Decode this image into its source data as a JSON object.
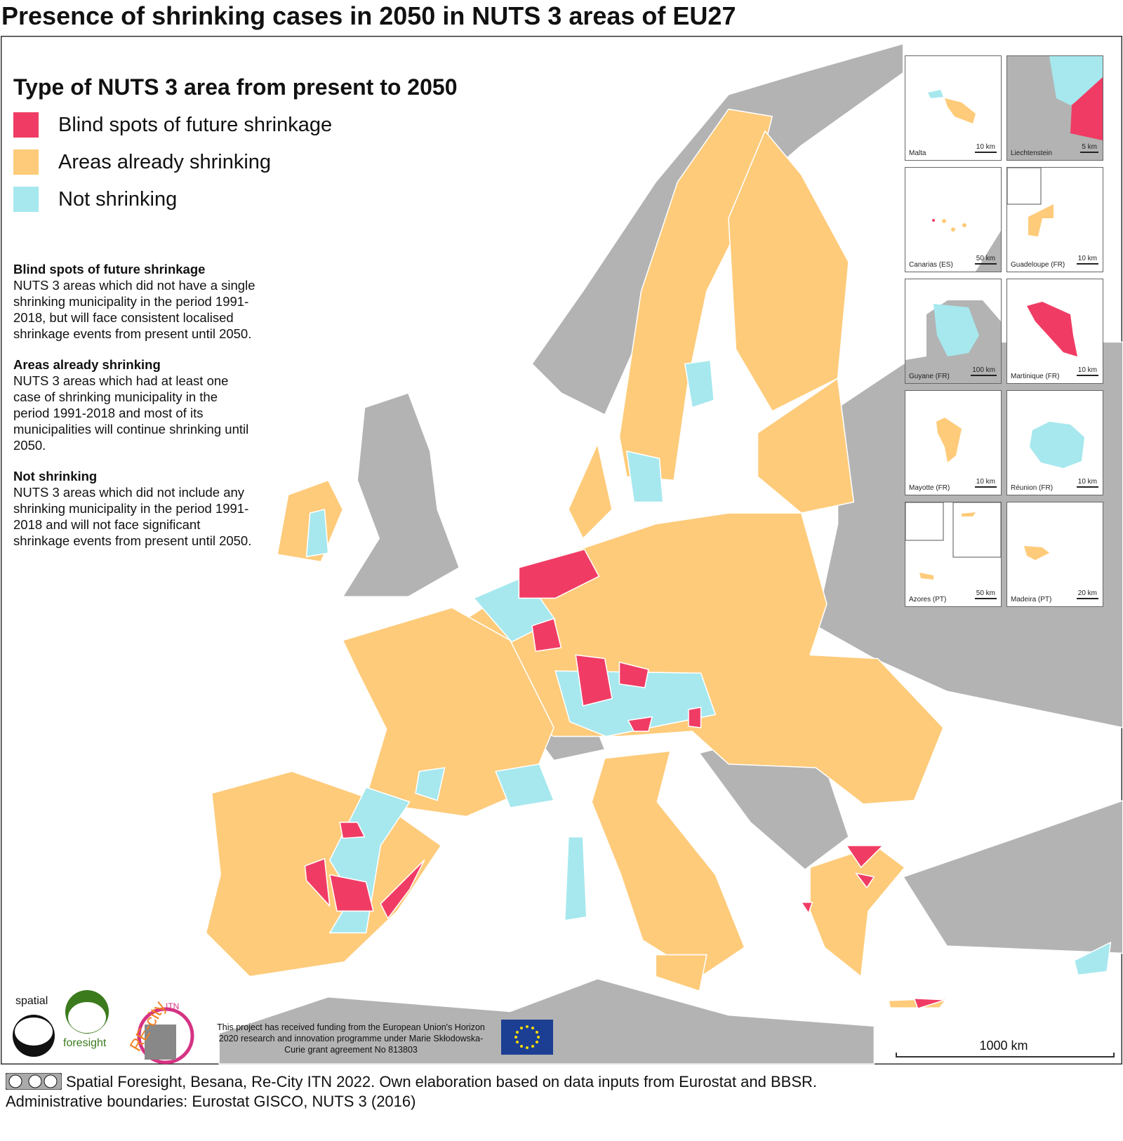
{
  "title": "Presence of shrinking cases in 2050 in NUTS 3 areas of EU27",
  "legend": {
    "title": "Type of NUTS 3 area from present to 2050",
    "items": [
      {
        "label": "Blind spots of future shrinkage",
        "color": "#f03c64"
      },
      {
        "label": "Areas already shrinking",
        "color": "#fecb7a"
      },
      {
        "label": "Not shrinking",
        "color": "#a6e8ee"
      }
    ]
  },
  "definitions": [
    {
      "heading": "Blind spots of future shrinkage",
      "text": "NUTS 3 areas which did not have a single shrinking municipality in the period 1991-2018, but will face consistent localised shrinkage events from present until 2050."
    },
    {
      "heading": "Areas already shrinking",
      "text": "NUTS 3 areas which had at least one case of shrinking municipality in the period 1991-2018 and most of its municipalities will continue shrinking until 2050."
    },
    {
      "heading": "Not shrinking",
      "text": "NUTS 3 areas which did not include any shrinking municipality in the period 1991-2018 and will not face significant shrinkage events from present until 2050."
    }
  ],
  "insets": [
    {
      "name": "Malta",
      "scale": "10 km"
    },
    {
      "name": "Liechtenstein",
      "scale": "5 km"
    },
    {
      "name": "Canarias (ES)",
      "scale": "50 km"
    },
    {
      "name": "Guadeloupe (FR)",
      "scale": "10 km"
    },
    {
      "name": "Guyane (FR)",
      "scale": "100 km"
    },
    {
      "name": "Martinique (FR)",
      "scale": "10 km"
    },
    {
      "name": "Mayotte (FR)",
      "scale": "10 km"
    },
    {
      "name": "Réunion (FR)",
      "scale": "10 km"
    },
    {
      "name": "Azores (PT)",
      "scale": "50 km"
    },
    {
      "name": "Madeira (PT)",
      "scale": "20 km"
    }
  ],
  "scale_bar": "1000 km",
  "logos": {
    "spatial": "spatial",
    "foresight": "foresight",
    "recity": "RE-city",
    "itn": "ITN"
  },
  "funding": "This project has received funding from the European Union's Horizon 2020 research and innovation programme under Marie Skłodowska-Curie grant agreement No 813803",
  "credits": [
    "Spatial Foresight, Besana, Re-City ITN 2022. Own elaboration based on data inputs from Eurostat and BBSR.",
    "Administrative boundaries: Eurostat GISCO, NUTS 3 (2016)"
  ]
}
